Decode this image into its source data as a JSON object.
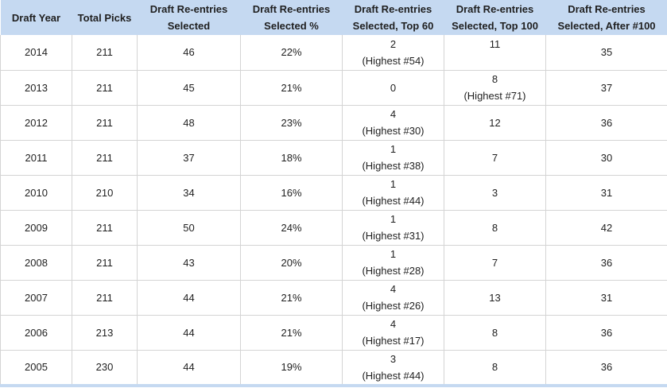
{
  "headers": [
    {
      "line1": "Draft Year",
      "line2": ""
    },
    {
      "line1": "Total Picks",
      "line2": ""
    },
    {
      "line1": "Draft Re-entries",
      "line2": "Selected"
    },
    {
      "line1": "Draft Re-entries",
      "line2": "Selected %"
    },
    {
      "line1": "Draft Re-entries",
      "line2": "Selected, Top 60"
    },
    {
      "line1": "Draft Re-entries",
      "line2": "Selected, Top 100"
    },
    {
      "line1": "Draft Re-entries",
      "line2": "Selected, After #100"
    }
  ],
  "rows": [
    {
      "year": "2014",
      "total": "211",
      "selected": "46",
      "pct": "22%",
      "top60": "2",
      "top60_note": "(Highest #54)",
      "top100": "11",
      "top100_note": "",
      "after100": "35"
    },
    {
      "year": "2013",
      "total": "211",
      "selected": "45",
      "pct": "21%",
      "top60": "0",
      "top60_note": "",
      "top100": "8",
      "top100_note": "(Highest #71)",
      "after100": "37"
    },
    {
      "year": "2012",
      "total": "211",
      "selected": "48",
      "pct": "23%",
      "top60": "4",
      "top60_note": "(Highest #30)",
      "top100": "12",
      "top100_note": "",
      "after100": "36"
    },
    {
      "year": "2011",
      "total": "211",
      "selected": "37",
      "pct": "18%",
      "top60": "1",
      "top60_note": "(Highest #38)",
      "top100": "7",
      "top100_note": "",
      "after100": "30"
    },
    {
      "year": "2010",
      "total": "210",
      "selected": "34",
      "pct": "16%",
      "top60": "1",
      "top60_note": "(Highest #44)",
      "top100": "3",
      "top100_note": "",
      "after100": "31"
    },
    {
      "year": "2009",
      "total": "211",
      "selected": "50",
      "pct": "24%",
      "top60": "1",
      "top60_note": "(Highest #31)",
      "top100": "8",
      "top100_note": "",
      "after100": "42"
    },
    {
      "year": "2008",
      "total": "211",
      "selected": "43",
      "pct": "20%",
      "top60": "1",
      "top60_note": "(Highest #28)",
      "top100": "7",
      "top100_note": "",
      "after100": "36"
    },
    {
      "year": "2007",
      "total": "211",
      "selected": "44",
      "pct": "21%",
      "top60": "4",
      "top60_note": "(Highest #26)",
      "top100": "13",
      "top100_note": "",
      "after100": "31"
    },
    {
      "year": "2006",
      "total": "213",
      "selected": "44",
      "pct": "21%",
      "top60": "4",
      "top60_note": "(Highest #17)",
      "top100": "8",
      "top100_note": "",
      "after100": "36"
    },
    {
      "year": "2005",
      "total": "230",
      "selected": "44",
      "pct": "19%",
      "top60": "3",
      "top60_note": "(Highest #44)",
      "top100": "8",
      "top100_note": "",
      "after100": "36"
    }
  ]
}
